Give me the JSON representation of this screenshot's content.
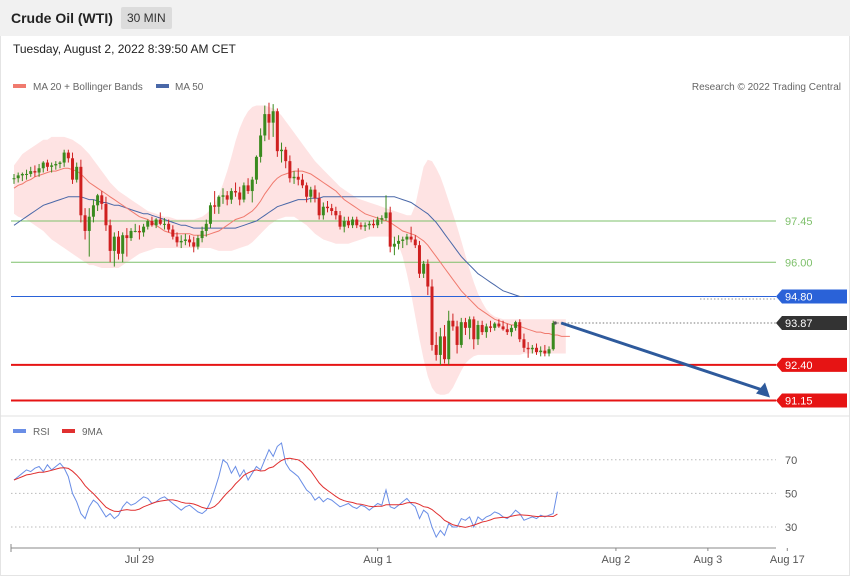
{
  "header": {
    "title": "Crude Oil (WTI)",
    "timeframe": "30 MIN",
    "timestamp": "Tuesday, August 2, 2022 8:39:50 AM CET"
  },
  "colors": {
    "ma20": "#f07a6e",
    "ma50": "#4a68a8",
    "bands": "#fdd9d9",
    "up": "#3a8a1e",
    "down": "#cf2020",
    "rsi": "#6a8ee6",
    "rsi_ma": "#e03030",
    "level_green": "#7ec06b",
    "level_blue": "#2a62d8",
    "level_red": "#e61414",
    "arrow": "#2e5a9c"
  },
  "legend": {
    "ma20_label": "MA 20 + Bollinger Bands",
    "ma50_label": "MA 50",
    "copyright": "Research © 2022 Trading Central"
  },
  "rsi_legend": {
    "rsi_label": "RSI",
    "ma_label": "9MA"
  },
  "levels": [
    {
      "value": 97.45,
      "label": "97.45",
      "kind": "resistance-green"
    },
    {
      "value": 96.0,
      "label": "96.00",
      "kind": "resistance-green"
    },
    {
      "value": 94.8,
      "label": "94.80",
      "kind": "pivot-blue"
    },
    {
      "value": 93.87,
      "label": "93.87",
      "kind": "last-price"
    },
    {
      "value": 92.4,
      "label": "92.40",
      "kind": "support-red"
    },
    {
      "value": 91.15,
      "label": "91.15",
      "kind": "support-red"
    }
  ],
  "x_labels": [
    {
      "label": "Jul 29",
      "index": 30
    },
    {
      "label": "Aug 1",
      "index": 87
    },
    {
      "label": "Aug 2",
      "index": 144
    },
    {
      "label": "Aug 3",
      "index": 166
    },
    {
      "label": "Aug 17",
      "index": 185
    }
  ],
  "rsi_levels": [
    {
      "value": 70,
      "label": "70"
    },
    {
      "value": 50,
      "label": "50"
    },
    {
      "value": 30,
      "label": "30"
    }
  ],
  "chart_data": {
    "type": "candlestick",
    "title": "Crude Oil (WTI)",
    "timeframe": "30 MIN",
    "price_range": [
      90.8,
      101.8
    ],
    "rsi_range": [
      20,
      85
    ],
    "ohlc": [
      [
        98.95,
        99.1,
        98.75,
        98.95
      ],
      [
        98.95,
        99.15,
        98.8,
        99.05
      ],
      [
        99.05,
        99.15,
        98.85,
        99.1
      ],
      [
        99.1,
        99.25,
        98.9,
        99.1
      ],
      [
        99.1,
        99.35,
        99.0,
        99.2
      ],
      [
        99.2,
        99.4,
        99.0,
        99.15
      ],
      [
        99.15,
        99.45,
        99.0,
        99.3
      ],
      [
        99.3,
        99.55,
        99.15,
        99.5
      ],
      [
        99.5,
        99.6,
        99.2,
        99.35
      ],
      [
        99.35,
        99.5,
        99.15,
        99.4
      ],
      [
        99.4,
        99.55,
        99.25,
        99.45
      ],
      [
        99.45,
        99.55,
        99.3,
        99.5
      ],
      [
        99.5,
        99.95,
        99.35,
        99.85
      ],
      [
        99.85,
        99.95,
        99.5,
        99.65
      ],
      [
        99.65,
        99.85,
        98.75,
        98.9
      ],
      [
        98.9,
        99.5,
        98.8,
        99.35
      ],
      [
        99.35,
        99.6,
        97.4,
        97.65
      ],
      [
        97.65,
        97.9,
        96.8,
        97.1
      ],
      [
        97.1,
        97.9,
        96.2,
        97.6
      ],
      [
        97.6,
        98.2,
        97.4,
        98.0
      ],
      [
        98.0,
        98.4,
        97.8,
        98.35
      ],
      [
        98.35,
        98.5,
        97.85,
        98.05
      ],
      [
        98.05,
        98.3,
        97.1,
        97.3
      ],
      [
        97.3,
        97.5,
        96.0,
        96.4
      ],
      [
        96.4,
        97.05,
        95.85,
        96.9
      ],
      [
        96.9,
        97.1,
        96.1,
        96.3
      ],
      [
        96.3,
        97.05,
        96.0,
        96.95
      ],
      [
        96.95,
        97.2,
        96.2,
        96.85
      ],
      [
        96.85,
        97.2,
        96.75,
        97.1
      ],
      [
        97.1,
        97.35,
        97.05,
        97.1
      ],
      [
        97.1,
        97.3,
        96.8,
        97.05
      ],
      [
        97.05,
        97.35,
        96.9,
        97.25
      ],
      [
        97.25,
        97.5,
        97.15,
        97.45
      ],
      [
        97.45,
        97.6,
        97.25,
        97.3
      ],
      [
        97.3,
        97.55,
        97.2,
        97.5
      ],
      [
        97.5,
        97.75,
        97.3,
        97.35
      ],
      [
        97.35,
        97.55,
        97.15,
        97.35
      ],
      [
        97.35,
        97.5,
        97.05,
        97.15
      ],
      [
        97.15,
        97.3,
        96.8,
        96.9
      ],
      [
        96.9,
        97.05,
        96.55,
        96.7
      ],
      [
        96.7,
        96.95,
        96.5,
        96.75
      ],
      [
        96.75,
        97.0,
        96.6,
        96.8
      ],
      [
        96.8,
        96.95,
        96.55,
        96.7
      ],
      [
        96.7,
        96.9,
        96.35,
        96.55
      ],
      [
        96.55,
        96.95,
        96.45,
        96.85
      ],
      [
        96.85,
        97.25,
        96.7,
        97.1
      ],
      [
        97.1,
        97.5,
        96.9,
        97.35
      ],
      [
        97.35,
        98.1,
        97.2,
        98.0
      ],
      [
        98.0,
        98.5,
        97.7,
        97.95
      ],
      [
        97.95,
        98.35,
        97.7,
        98.3
      ],
      [
        98.3,
        98.6,
        98.05,
        98.35
      ],
      [
        98.35,
        98.5,
        98.0,
        98.2
      ],
      [
        98.2,
        98.6,
        98.05,
        98.5
      ],
      [
        98.5,
        98.8,
        98.3,
        98.45
      ],
      [
        98.45,
        98.65,
        98.0,
        98.2
      ],
      [
        98.2,
        98.8,
        98.1,
        98.7
      ],
      [
        98.7,
        98.95,
        98.4,
        98.5
      ],
      [
        98.5,
        99.0,
        98.1,
        98.9
      ],
      [
        98.9,
        99.75,
        98.75,
        99.7
      ],
      [
        99.7,
        100.7,
        99.5,
        100.45
      ],
      [
        100.45,
        101.5,
        100.25,
        101.2
      ],
      [
        101.2,
        101.6,
        100.3,
        100.9
      ],
      [
        100.9,
        101.55,
        100.4,
        101.3
      ],
      [
        101.3,
        101.4,
        99.7,
        99.9
      ],
      [
        99.9,
        100.2,
        99.5,
        99.95
      ],
      [
        99.95,
        100.05,
        99.3,
        99.55
      ],
      [
        99.55,
        99.75,
        98.8,
        98.95
      ],
      [
        98.95,
        99.2,
        98.75,
        99.0
      ],
      [
        99.0,
        99.3,
        98.7,
        98.9
      ],
      [
        98.9,
        99.1,
        98.6,
        98.7
      ],
      [
        98.7,
        98.8,
        98.1,
        98.3
      ],
      [
        98.3,
        98.65,
        98.1,
        98.55
      ],
      [
        98.55,
        98.7,
        98.1,
        98.25
      ],
      [
        98.25,
        98.45,
        97.5,
        97.65
      ],
      [
        97.65,
        98.1,
        97.5,
        97.95
      ],
      [
        97.95,
        98.15,
        97.75,
        97.9
      ],
      [
        97.9,
        98.05,
        97.65,
        97.8
      ],
      [
        97.8,
        97.95,
        97.5,
        97.65
      ],
      [
        97.65,
        97.8,
        97.15,
        97.25
      ],
      [
        97.25,
        97.6,
        97.05,
        97.45
      ],
      [
        97.45,
        97.6,
        97.2,
        97.3
      ],
      [
        97.3,
        97.6,
        97.2,
        97.5
      ],
      [
        97.5,
        97.6,
        97.2,
        97.3
      ],
      [
        97.3,
        97.4,
        97.15,
        97.25
      ],
      [
        97.25,
        97.4,
        97.1,
        97.3
      ],
      [
        97.3,
        97.45,
        97.15,
        97.35
      ],
      [
        97.35,
        97.5,
        97.2,
        97.3
      ],
      [
        97.3,
        97.6,
        97.2,
        97.5
      ],
      [
        97.5,
        97.65,
        97.35,
        97.55
      ],
      [
        97.55,
        98.35,
        97.45,
        97.75
      ],
      [
        97.75,
        97.95,
        96.35,
        96.55
      ],
      [
        96.55,
        96.9,
        96.25,
        96.65
      ],
      [
        96.65,
        96.95,
        96.45,
        96.75
      ],
      [
        96.75,
        96.9,
        96.5,
        96.8
      ],
      [
        96.8,
        97.0,
        96.6,
        96.9
      ],
      [
        96.9,
        97.25,
        96.7,
        96.8
      ],
      [
        96.8,
        96.95,
        96.5,
        96.6
      ],
      [
        96.6,
        96.75,
        95.45,
        95.6
      ],
      [
        95.6,
        96.05,
        95.45,
        95.95
      ],
      [
        95.95,
        96.1,
        94.85,
        95.15
      ],
      [
        95.15,
        95.4,
        92.9,
        93.1
      ],
      [
        93.1,
        93.55,
        92.55,
        92.75
      ],
      [
        92.75,
        93.7,
        92.4,
        93.4
      ],
      [
        93.4,
        93.8,
        92.45,
        92.6
      ],
      [
        92.6,
        94.3,
        92.4,
        93.95
      ],
      [
        93.95,
        94.2,
        93.6,
        93.75
      ],
      [
        93.75,
        93.95,
        92.8,
        93.1
      ],
      [
        93.1,
        94.05,
        93.0,
        93.9
      ],
      [
        93.9,
        94.05,
        93.45,
        93.7
      ],
      [
        93.7,
        94.1,
        93.3,
        94.0
      ],
      [
        94.0,
        94.1,
        92.95,
        93.3
      ],
      [
        93.3,
        93.95,
        93.1,
        93.8
      ],
      [
        93.8,
        93.95,
        93.45,
        93.55
      ],
      [
        93.55,
        93.85,
        93.35,
        93.75
      ],
      [
        93.75,
        93.95,
        93.55,
        93.7
      ],
      [
        93.7,
        93.9,
        93.6,
        93.85
      ],
      [
        93.85,
        94.0,
        93.7,
        93.75
      ],
      [
        93.75,
        93.95,
        93.6,
        93.65
      ],
      [
        93.65,
        93.85,
        93.45,
        93.55
      ],
      [
        93.55,
        93.8,
        93.4,
        93.7
      ],
      [
        93.7,
        93.95,
        93.6,
        93.9
      ],
      [
        93.9,
        94.0,
        93.2,
        93.3
      ],
      [
        93.3,
        93.5,
        92.85,
        93.0
      ],
      [
        93.0,
        93.2,
        92.65,
        92.95
      ],
      [
        92.95,
        93.1,
        92.8,
        93.0
      ],
      [
        93.0,
        93.15,
        92.75,
        92.85
      ],
      [
        92.85,
        93.05,
        92.7,
        92.9
      ],
      [
        92.9,
        93.1,
        92.7,
        92.8
      ],
      [
        92.8,
        93.05,
        92.7,
        92.95
      ],
      [
        92.95,
        93.95,
        92.9,
        93.87
      ]
    ],
    "ma20": [
      98.6,
      98.7,
      98.75,
      98.85,
      98.9,
      99.0,
      99.05,
      99.1,
      99.15,
      99.2,
      99.2,
      99.25,
      99.3,
      99.3,
      99.25,
      99.2,
      99.1,
      98.95,
      98.8,
      98.7,
      98.6,
      98.5,
      98.4,
      98.3,
      98.2,
      98.1,
      98.0,
      97.9,
      97.8,
      97.7,
      97.6,
      97.55,
      97.5,
      97.4,
      97.3,
      97.2,
      97.1,
      97.05,
      97.0,
      97.0,
      97.0,
      97.0,
      97.0,
      96.95,
      96.95,
      96.95,
      96.95,
      97.0,
      97.05,
      97.1,
      97.2,
      97.3,
      97.4,
      97.5,
      97.55,
      97.6,
      97.7,
      97.8,
      97.95,
      98.15,
      98.4,
      98.6,
      98.8,
      98.95,
      99.05,
      99.1,
      99.15,
      99.2,
      99.2,
      99.2,
      99.15,
      99.1,
      99.0,
      98.9,
      98.8,
      98.7,
      98.6,
      98.5,
      98.35,
      98.2,
      98.1,
      98.0,
      97.9,
      97.8,
      97.7,
      97.65,
      97.6,
      97.55,
      97.5,
      97.45,
      97.4,
      97.3,
      97.2,
      97.1,
      97.05,
      97.0,
      96.95,
      96.85,
      96.75,
      96.6,
      96.4,
      96.2,
      96.0,
      95.8,
      95.6,
      95.4,
      95.2,
      95.0,
      94.85,
      94.7,
      94.55,
      94.4,
      94.3,
      94.2,
      94.1,
      94.0,
      93.95,
      93.9,
      93.85,
      93.8,
      93.8,
      93.75,
      93.7,
      93.65,
      93.6,
      93.55,
      93.55,
      93.5,
      93.5,
      93.45,
      93.45,
      93.4,
      93.4,
      93.4
    ],
    "ma50": [
      97.3,
      97.4,
      97.5,
      97.6,
      97.7,
      97.8,
      97.9,
      98.0,
      98.05,
      98.1,
      98.15,
      98.2,
      98.25,
      98.3,
      98.3,
      98.3,
      98.3,
      98.25,
      98.2,
      98.2,
      98.15,
      98.1,
      98.1,
      98.05,
      98.0,
      98.0,
      97.95,
      97.9,
      97.85,
      97.8,
      97.75,
      97.7,
      97.7,
      97.65,
      97.6,
      97.55,
      97.5,
      97.45,
      97.4,
      97.35,
      97.3,
      97.3,
      97.25,
      97.2,
      97.2,
      97.2,
      97.2,
      97.2,
      97.2,
      97.2,
      97.2,
      97.2,
      97.2,
      97.2,
      97.25,
      97.3,
      97.35,
      97.4,
      97.45,
      97.55,
      97.65,
      97.75,
      97.85,
      97.95,
      98.0,
      98.05,
      98.1,
      98.15,
      98.2,
      98.2,
      98.2,
      98.25,
      98.25,
      98.25,
      98.3,
      98.3,
      98.3,
      98.3,
      98.3,
      98.3,
      98.3,
      98.3,
      98.3,
      98.3,
      98.3,
      98.3,
      98.3,
      98.3,
      98.3,
      98.3,
      98.3,
      98.3,
      98.25,
      98.2,
      98.15,
      98.1,
      98.0,
      97.9,
      97.8,
      97.7,
      97.55,
      97.4,
      97.2,
      97.0,
      96.8,
      96.6,
      96.4,
      96.2,
      96.05,
      95.9,
      95.75,
      95.6,
      95.5,
      95.4,
      95.3,
      95.2,
      95.1,
      95.0,
      94.95,
      94.9,
      94.85,
      94.8,
      94.8
    ],
    "bb_upper": [
      99.4,
      99.6,
      99.8,
      99.9,
      100.0,
      100.1,
      100.2,
      100.3,
      100.3,
      100.4,
      100.4,
      100.4,
      100.4,
      100.35,
      100.3,
      100.2,
      100.1,
      99.95,
      99.8,
      99.6,
      99.4,
      99.2,
      99.0,
      98.8,
      98.65,
      98.5,
      98.4,
      98.3,
      98.2,
      98.1,
      98.0,
      97.9,
      97.8,
      97.75,
      97.7,
      97.65,
      97.6,
      97.6,
      97.55,
      97.5,
      97.5,
      97.5,
      97.5,
      97.5,
      97.55,
      97.6,
      97.7,
      97.85,
      98.05,
      98.35,
      98.75,
      99.2,
      99.7,
      100.25,
      100.7,
      101.05,
      101.3,
      101.45,
      101.5,
      101.5,
      101.5,
      101.45,
      101.4,
      101.3,
      101.15,
      100.95,
      100.75,
      100.55,
      100.35,
      100.15,
      99.95,
      99.75,
      99.55,
      99.4,
      99.25,
      99.1,
      98.95,
      98.8,
      98.65,
      98.55,
      98.45,
      98.35,
      98.25,
      98.2,
      98.15,
      98.1,
      98.05,
      98.0,
      97.95,
      97.9,
      97.85,
      97.8,
      97.75,
      97.7,
      97.65,
      97.65,
      98.0,
      98.7,
      99.35,
      99.6,
      99.55,
      99.3,
      99.0,
      98.6,
      98.15,
      97.7,
      97.25,
      96.75,
      96.25,
      95.75,
      95.3,
      94.9,
      94.6,
      94.35,
      94.2,
      94.1,
      94.05,
      94.0,
      94.0,
      94.0,
      94.0,
      94.0,
      94.0,
      94.0,
      94.0,
      94.0,
      94.0,
      94.0,
      94.0,
      94.0,
      94.0,
      94.0,
      94.0
    ],
    "bb_lower": [
      97.7,
      97.6,
      97.55,
      97.5,
      97.4,
      97.3,
      97.2,
      97.1,
      96.95,
      96.8,
      96.7,
      96.6,
      96.5,
      96.4,
      96.3,
      96.2,
      96.1,
      96.0,
      95.9,
      95.9,
      95.85,
      95.8,
      95.8,
      95.8,
      95.8,
      95.8,
      95.9,
      96.0,
      96.1,
      96.2,
      96.3,
      96.35,
      96.4,
      96.45,
      96.5,
      96.5,
      96.5,
      96.5,
      96.5,
      96.5,
      96.5,
      96.5,
      96.5,
      96.5,
      96.5,
      96.5,
      96.5,
      96.5,
      96.45,
      96.4,
      96.4,
      96.4,
      96.4,
      96.45,
      96.5,
      96.55,
      96.6,
      96.7,
      96.85,
      97.0,
      97.15,
      97.3,
      97.4,
      97.5,
      97.55,
      97.6,
      97.6,
      97.6,
      97.5,
      97.4,
      97.3,
      97.15,
      97.0,
      96.9,
      96.8,
      96.75,
      96.7,
      96.65,
      96.65,
      96.65,
      96.65,
      96.7,
      96.75,
      96.8,
      96.85,
      96.9,
      96.9,
      96.9,
      96.9,
      96.9,
      96.9,
      96.85,
      96.6,
      96.2,
      95.6,
      94.9,
      94.1,
      93.3,
      92.6,
      92.0,
      91.6,
      91.4,
      91.35,
      91.35,
      91.4,
      91.6,
      91.9,
      92.2,
      92.45,
      92.6,
      92.7,
      92.75,
      92.75,
      92.75,
      92.75,
      92.75,
      92.75,
      92.75,
      92.75,
      92.75,
      92.75,
      92.75,
      92.8,
      92.8,
      92.8,
      92.8,
      92.8,
      92.8,
      92.8,
      92.8,
      92.8,
      92.8,
      92.8
    ],
    "rsi": [
      58,
      60,
      62,
      64,
      63,
      65,
      66,
      63,
      67,
      64,
      66,
      68,
      65,
      60,
      50,
      45,
      38,
      35,
      42,
      46,
      44,
      40,
      36,
      38,
      35,
      37,
      42,
      45,
      43,
      44,
      46,
      48,
      47,
      44,
      45,
      47,
      48,
      46,
      44,
      42,
      40,
      42,
      43,
      41,
      39,
      38,
      40,
      45,
      52,
      60,
      70,
      68,
      62,
      66,
      60,
      64,
      58,
      62,
      66,
      64,
      70,
      76,
      72,
      78,
      80,
      68,
      64,
      62,
      60,
      56,
      52,
      50,
      46,
      48,
      45,
      47,
      46,
      44,
      42,
      43,
      44,
      42,
      41,
      43,
      42,
      40,
      42,
      44,
      43,
      52,
      42,
      41,
      43,
      45,
      47,
      44,
      42,
      35,
      40,
      38,
      30,
      24,
      28,
      25,
      32,
      30,
      30,
      35,
      34,
      36,
      30,
      36,
      34,
      36,
      37,
      39,
      38,
      36,
      35,
      37,
      40,
      38,
      34,
      35,
      36,
      35,
      37,
      36,
      37,
      38,
      51
    ]
  }
}
